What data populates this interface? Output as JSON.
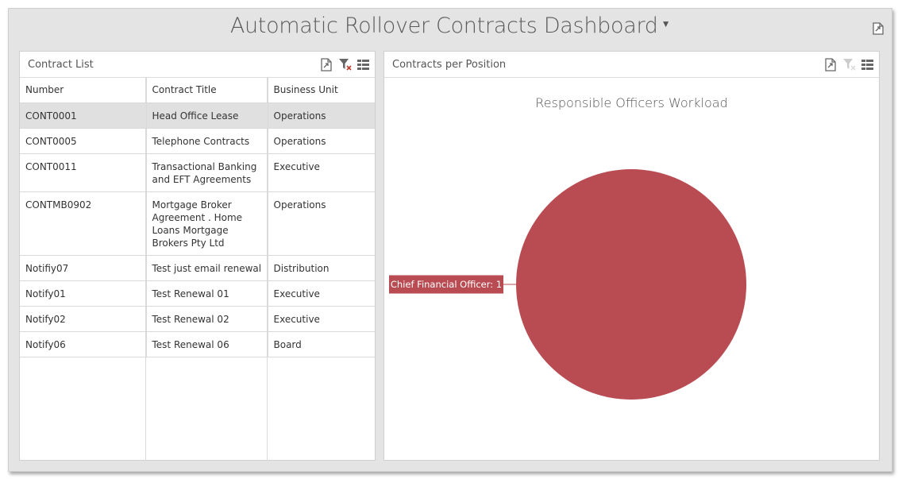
{
  "dashboard": {
    "title": "Automatic Rollover Contracts Dashboard"
  },
  "contract_list": {
    "title": "Contract List",
    "columns": [
      "Number",
      "Contract Title",
      "Business Unit"
    ],
    "rows": [
      {
        "number": "CONT0001",
        "title": "Head Office Lease",
        "unit": "Operations"
      },
      {
        "number": "CONT0005",
        "title": "Telephone Contracts",
        "unit": "Operations"
      },
      {
        "number": "CONT0011",
        "title": "Transactional Banking and EFT Agreements",
        "unit": "Executive"
      },
      {
        "number": "CONTMB0902",
        "title": "Mortgage Broker Agreement . Home Loans Mortgage Brokers Pty Ltd",
        "unit": "Operations"
      },
      {
        "number": "Notifiy07",
        "title": "Test just email renewal",
        "unit": "Distribution"
      },
      {
        "number": "Notify01",
        "title": "Test Renewal 01",
        "unit": "Executive"
      },
      {
        "number": "Notify02",
        "title": "Test Renewal 02",
        "unit": "Executive"
      },
      {
        "number": "Notify06",
        "title": "Test Renewal 06",
        "unit": "Board"
      }
    ],
    "selected_row": 0
  },
  "chart_panel": {
    "title": "Contracts per Position"
  },
  "chart_data": {
    "type": "pie",
    "title": "Responsible Officers Workload",
    "categories": [
      "Chief Financial Officer"
    ],
    "values": [
      1
    ],
    "data_labels": [
      "Chief Financial Officer: 1"
    ],
    "colors": [
      "#b94c53"
    ]
  },
  "icons": {
    "export": "export-icon",
    "clear_filter": "clear-filter-icon",
    "multi_select": "multi-select-icon",
    "dashboard_filter": "funnel-icon"
  }
}
